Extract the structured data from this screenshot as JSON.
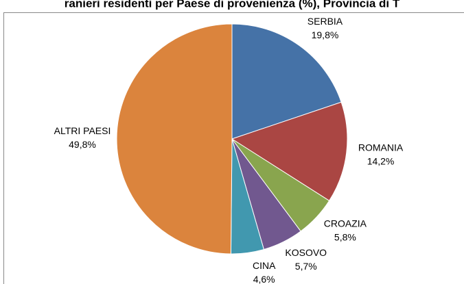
{
  "chart_data": {
    "type": "pie",
    "title": "ranieri residenti per Paese di provenienza (%), Provincia di T",
    "categories": [
      "SERBIA",
      "ROMANIA",
      "CROAZIA",
      "KOSOVO",
      "CINA",
      "ALTRI PAESI"
    ],
    "values": [
      19.8,
      14.2,
      5.8,
      5.7,
      4.6,
      49.8
    ],
    "value_labels": [
      "19,8%",
      "14,2%",
      "5,8%",
      "5,7%",
      "4,6%",
      "49,8%"
    ],
    "colors": [
      "#4572a7",
      "#aa4643",
      "#89a54e",
      "#71588f",
      "#4198af",
      "#db843d"
    ]
  }
}
